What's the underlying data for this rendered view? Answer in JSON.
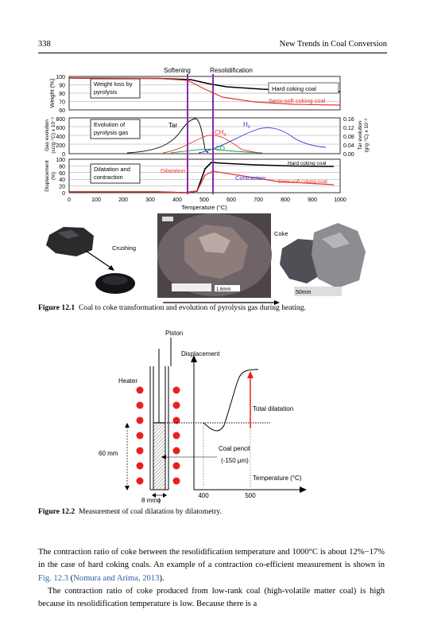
{
  "header": {
    "page_number": "338",
    "running_title": "New Trends in Coal Conversion"
  },
  "figure1": {
    "caption_label": "Figure 12.1",
    "caption_text": "Coal to coke transformation and evolution of pyrolysis gas during heating.",
    "top_labels": {
      "softening": "Softening",
      "resolidification": "Resolidification"
    },
    "panel_weight": {
      "ylabel": "Weight (%)",
      "ticks": [
        "100",
        "90",
        "80",
        "70",
        "60"
      ],
      "box_label_1": "Weight loss by",
      "box_label_2": "pyrolysis",
      "series_hard": "Hard coking coal",
      "series_semi": "Semi-soft coking coal"
    },
    "panel_gas": {
      "ylabel_1": "Gas evolution",
      "ylabel_2": "(cc/g·°C) x 10⁻³",
      "ticks_left": [
        "800",
        "600",
        "400",
        "200",
        "0"
      ],
      "ticks_right": [
        "0.16",
        "0.12",
        "0.08",
        "0.04",
        "0.00"
      ],
      "ylabel_right_1": "Tar evolution",
      "ylabel_right_2": "(g/g·°C) x 10⁻²",
      "box_label_1": "Evolution of",
      "box_label_2": "pyrolysis gas",
      "tar": "Tar",
      "ch4": "CH",
      "ch4_sub": "4",
      "h2": "H",
      "h2_sub": "2",
      "co": "CO"
    },
    "panel_dil": {
      "ylabel_1": "Displacement",
      "ylabel_2": "(%)",
      "ticks": [
        "100",
        "80",
        "60",
        "40",
        "20",
        "0"
      ],
      "box_label_1": "Dilatation and",
      "box_label_2": "contraction",
      "dilatation": "Dilatation",
      "contraction": "Contraction",
      "series_hard": "Hard coking coal",
      "series_semi": "Semi-soft coking coal"
    },
    "x_ticks": [
      "0",
      "100",
      "200",
      "300",
      "400",
      "500",
      "600",
      "700",
      "800",
      "900",
      "1000"
    ],
    "xlabel": "Temperature (°C)",
    "photos": {
      "crushing": "Crushing",
      "coke": "Coke",
      "scale_small": "1.6mm",
      "scale_large": "50mm"
    },
    "colors": {
      "hard": "#000000",
      "semi": "#e8352a",
      "tar": "#000000",
      "ch4": "#e8352a",
      "h2": "#2a3ad8",
      "co": "#1a9a3a",
      "marker": "#8a2aa8"
    }
  },
  "figure2": {
    "caption_label": "Figure 12.2",
    "caption_text": "Measurement of coal dilatation by dilatometry.",
    "piston": "Piston",
    "heater": "Heater",
    "displacement": "Displacement",
    "total_dilatation": "Total dilatation",
    "coal_pencil_1": "Coal pencil",
    "coal_pencil_2": "(-150 μm)",
    "temperature": "Temperature (°C)",
    "height_60": "60 mm",
    "width_8": "8 mmϕ",
    "x_400": "400",
    "x_500": "500"
  },
  "body": {
    "p1": "The contraction ratio of coke between the resolidification temperature and 1000°C is about 12%−17% in the case of hard coking coals. An example of a contraction co-efficient measurement is shown in ",
    "p1_ref1": "Fig. 12.3",
    "p1_mid": " (",
    "p1_ref2": "Nomura and Arima, 2013",
    "p1_end": ").",
    "p2": "The contraction ratio of coke produced from low-rank coal (high-volatile matter coal) is high because its resolidification temperature is low. Because there is a"
  }
}
